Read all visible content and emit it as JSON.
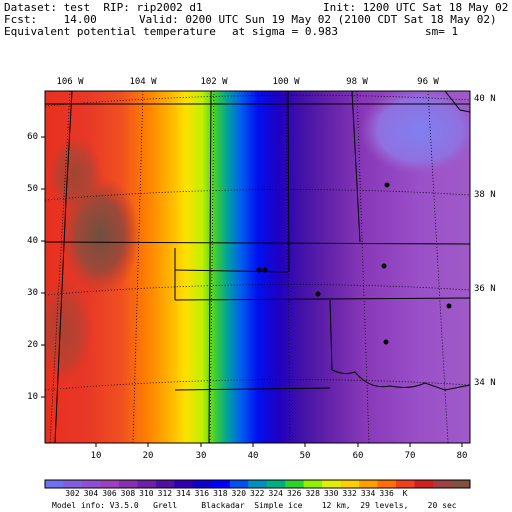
{
  "header": {
    "dataset": "Dataset: test  RIP: rip2002 d1",
    "init": "Init: 1200 UTC Sat 18 May 02",
    "fcst": "Fcst:    14.00",
    "valid": "Valid: 0200 UTC Sun 19 May 02 (2100 CDT Sat 18 May 02)",
    "field": "Equivalent potential temperature",
    "sigma": "at sigma = 0.983",
    "sm": "sm= 1"
  },
  "map": {
    "top_lon_labels": [
      "106 W",
      "104 W",
      "102 W",
      "100 W",
      "98 W",
      "96 W"
    ],
    "right_lat_labels": [
      "40 N",
      "38 N",
      "36 N",
      "34 N"
    ],
    "x_ticks": [
      "10",
      "20",
      "30",
      "40",
      "50",
      "60",
      "70",
      "80"
    ],
    "y_ticks": [
      "10",
      "20",
      "30",
      "40",
      "50",
      "60"
    ],
    "colors": [
      "#7070f0",
      "#7f5fe0",
      "#8f4fd0",
      "#9f3fc0",
      "#8a2fb0",
      "#7020a8",
      "#5010a0",
      "#3000b0",
      "#1000d0",
      "#0000ff",
      "#0050f0",
      "#0090c0",
      "#00b080",
      "#30d030",
      "#90f000",
      "#e0f000",
      "#ffd000",
      "#ffa000",
      "#ff7000",
      "#f04020",
      "#d02020",
      "#a04040",
      "#805040"
    ],
    "city_marker_count": "6"
  },
  "colorbar": {
    "labels": [
      "302",
      "304",
      "306",
      "308",
      "310",
      "312",
      "314",
      "316",
      "318",
      "320",
      "322",
      "324",
      "326",
      "328",
      "330",
      "332",
      "334",
      "336",
      "K"
    ]
  },
  "footer": {
    "model_info": "Model info: V3.5.0   Grell     Blackadar  Simple ice    12 km,  29 levels,    20 sec"
  }
}
